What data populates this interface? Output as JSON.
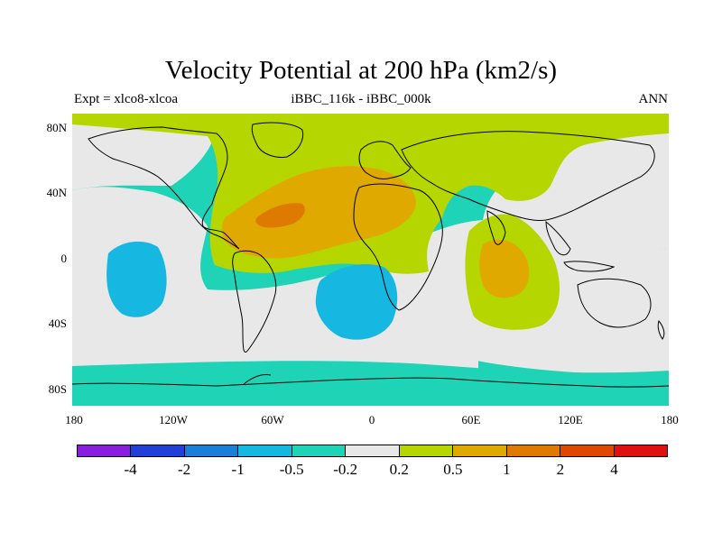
{
  "title": "Velocity Potential at 200 hPa (km2/s)",
  "subtitle_left": "Expt = xlco8-xlcoa",
  "subtitle_center": "iBBC_116k - iBBC_000k",
  "subtitle_right": "ANN",
  "lat_labels": [
    "80N",
    "40N",
    "0",
    "40S",
    "80S"
  ],
  "lon_labels": [
    "180",
    "120W",
    "60W",
    "0",
    "60E",
    "120E",
    "180"
  ],
  "colorbar": {
    "colors": [
      "#8a1ee0",
      "#2040d8",
      "#1a7fd8",
      "#16b7e0",
      "#1fd3b6",
      "#e8e8e8",
      "#b6d600",
      "#dfa900",
      "#de7a00",
      "#e04800",
      "#e01010"
    ],
    "labels": [
      "-4",
      "-2",
      "-1",
      "-0.5",
      "-0.2",
      "0.2",
      "0.5",
      "1",
      "2",
      "4"
    ]
  },
  "chart_data": {
    "type": "heatmap",
    "title": "Velocity Potential at 200 hPa (km2/s)",
    "units": "km2/s",
    "experiment": "xlco8-xlcoa",
    "comparison": "iBBC_116k - iBBC_000k",
    "season": "ANN",
    "x_range": [
      -180,
      180
    ],
    "y_range": [
      -90,
      90
    ],
    "levels": [
      -4,
      -2,
      -1,
      -0.5,
      -0.2,
      0.2,
      0.5,
      1,
      2,
      4
    ],
    "regions": [
      {
        "description": "Positive anomaly over Caribbean / North Atlantic / North Africa",
        "range": [
          1,
          2
        ]
      },
      {
        "description": "Positive anomaly over Indian Ocean",
        "range": [
          1,
          2
        ]
      },
      {
        "description": "Positive band over Northern Hemisphere high latitudes",
        "range": [
          0.5,
          1
        ]
      },
      {
        "description": "Negative anomaly over tropical / subtropical central Pacific",
        "range": [
          -1,
          -0.5
        ]
      },
      {
        "description": "Negative anomaly over South Atlantic",
        "range": [
          -1,
          -0.5
        ]
      },
      {
        "description": "Southern Ocean / Pacific background",
        "range": [
          -0.5,
          -0.2
        ]
      }
    ]
  }
}
